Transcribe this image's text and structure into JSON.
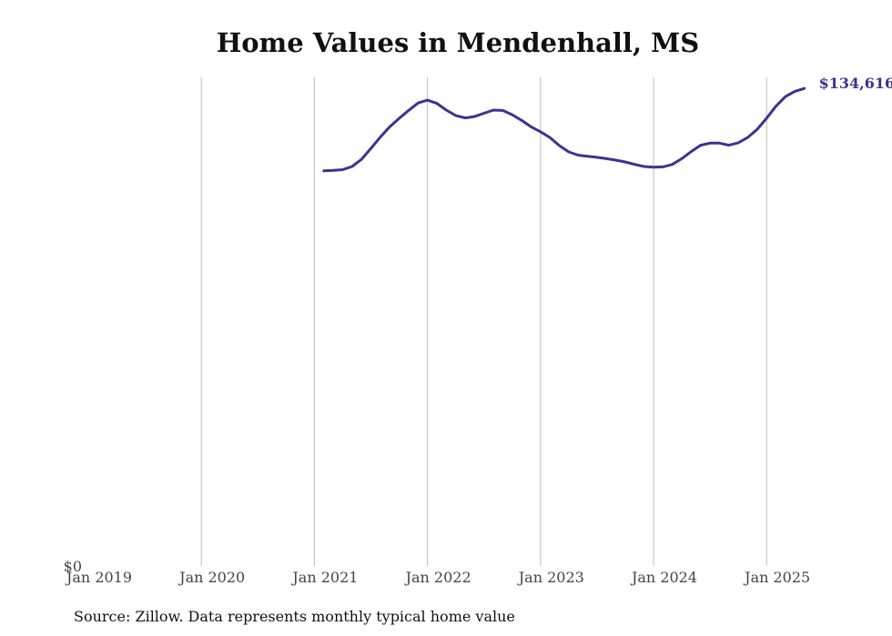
{
  "chart_data": {
    "type": "line",
    "title": "Home Values in Mendenhall, MS",
    "source": "Source: Zillow. Data represents monthly typical home value",
    "xlabel": "",
    "ylabel": "",
    "x_ticks": [
      "Jan 2019",
      "Jan 2020",
      "Jan 2021",
      "Jan 2022",
      "Jan 2023",
      "Jan 2024",
      "Jan 2025"
    ],
    "y_ticks": [
      "$0"
    ],
    "ylim": [
      0,
      138000
    ],
    "xlim": [
      "2019-01",
      "2025-05"
    ],
    "grid": "vertical",
    "line_color": "#3b3490",
    "end_label": "$134,616",
    "series": [
      {
        "x": [
          "2021-02",
          "2021-03",
          "2021-04",
          "2021-05",
          "2021-06",
          "2021-07",
          "2021-08",
          "2021-09",
          "2021-10",
          "2021-11",
          "2021-12",
          "2022-01",
          "2022-02",
          "2022-03",
          "2022-04",
          "2022-05",
          "2022-06",
          "2022-07",
          "2022-08",
          "2022-09",
          "2022-10",
          "2022-11",
          "2022-12",
          "2023-01",
          "2023-02",
          "2023-03",
          "2023-04",
          "2023-05",
          "2023-06",
          "2023-07",
          "2023-08",
          "2023-09",
          "2023-10",
          "2023-11",
          "2023-12",
          "2024-01",
          "2024-02",
          "2024-03",
          "2024-04",
          "2024-05",
          "2024-06",
          "2024-07",
          "2024-08",
          "2024-09",
          "2024-10",
          "2024-11",
          "2024-12",
          "2025-01",
          "2025-02",
          "2025-03",
          "2025-04",
          "2025-05"
        ],
        "values": [
          111400,
          111500,
          111700,
          112600,
          114600,
          117700,
          120900,
          123800,
          126200,
          128400,
          130500,
          131300,
          130400,
          128500,
          127000,
          126300,
          126700,
          127600,
          128500,
          128400,
          127200,
          125600,
          123800,
          122400,
          120800,
          118500,
          116700,
          115800,
          115500,
          115200,
          114800,
          114400,
          113900,
          113200,
          112600,
          112400,
          112500,
          113200,
          114800,
          116800,
          118600,
          119200,
          119200,
          118600,
          119300,
          120800,
          123100,
          126200,
          129600,
          132300,
          133800,
          134616
        ]
      }
    ]
  }
}
